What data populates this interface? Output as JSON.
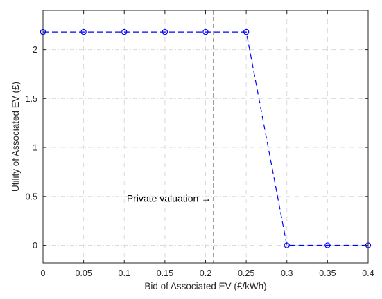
{
  "chart_data": {
    "type": "line",
    "title": "",
    "xlabel": "Bid of Associated EV (£/kWh)",
    "ylabel": "Utility of Associated EV (£)",
    "xlim": [
      0,
      0.4
    ],
    "ylim": [
      -0.18,
      2.4
    ],
    "xticks": [
      0,
      0.05,
      0.1,
      0.15,
      0.2,
      0.25,
      0.3,
      0.35,
      0.4
    ],
    "xtick_labels": [
      "0",
      "0.05",
      "0.1",
      "0.15",
      "0.2",
      "0.25",
      "0.3",
      "0.35",
      "0.4"
    ],
    "yticks": [
      0,
      0.5,
      1,
      1.5,
      2
    ],
    "ytick_labels": [
      "0",
      "0.5",
      "1",
      "1.5",
      "2"
    ],
    "grid": true,
    "series": [
      {
        "x": [
          0,
          0.05,
          0.1,
          0.15,
          0.2,
          0.25,
          0.3,
          0.35,
          0.4
        ],
        "y": [
          2.18,
          2.18,
          2.18,
          2.18,
          2.18,
          2.18,
          0,
          0,
          0
        ],
        "color": "#0000ff",
        "line_style": "dashed",
        "marker": "circle"
      }
    ],
    "vline": {
      "x": 0.21,
      "color": "#000000",
      "line_style": "dashed"
    },
    "annotation": {
      "text": "Private valuation →",
      "x": 0.21,
      "y": 0.48
    }
  }
}
